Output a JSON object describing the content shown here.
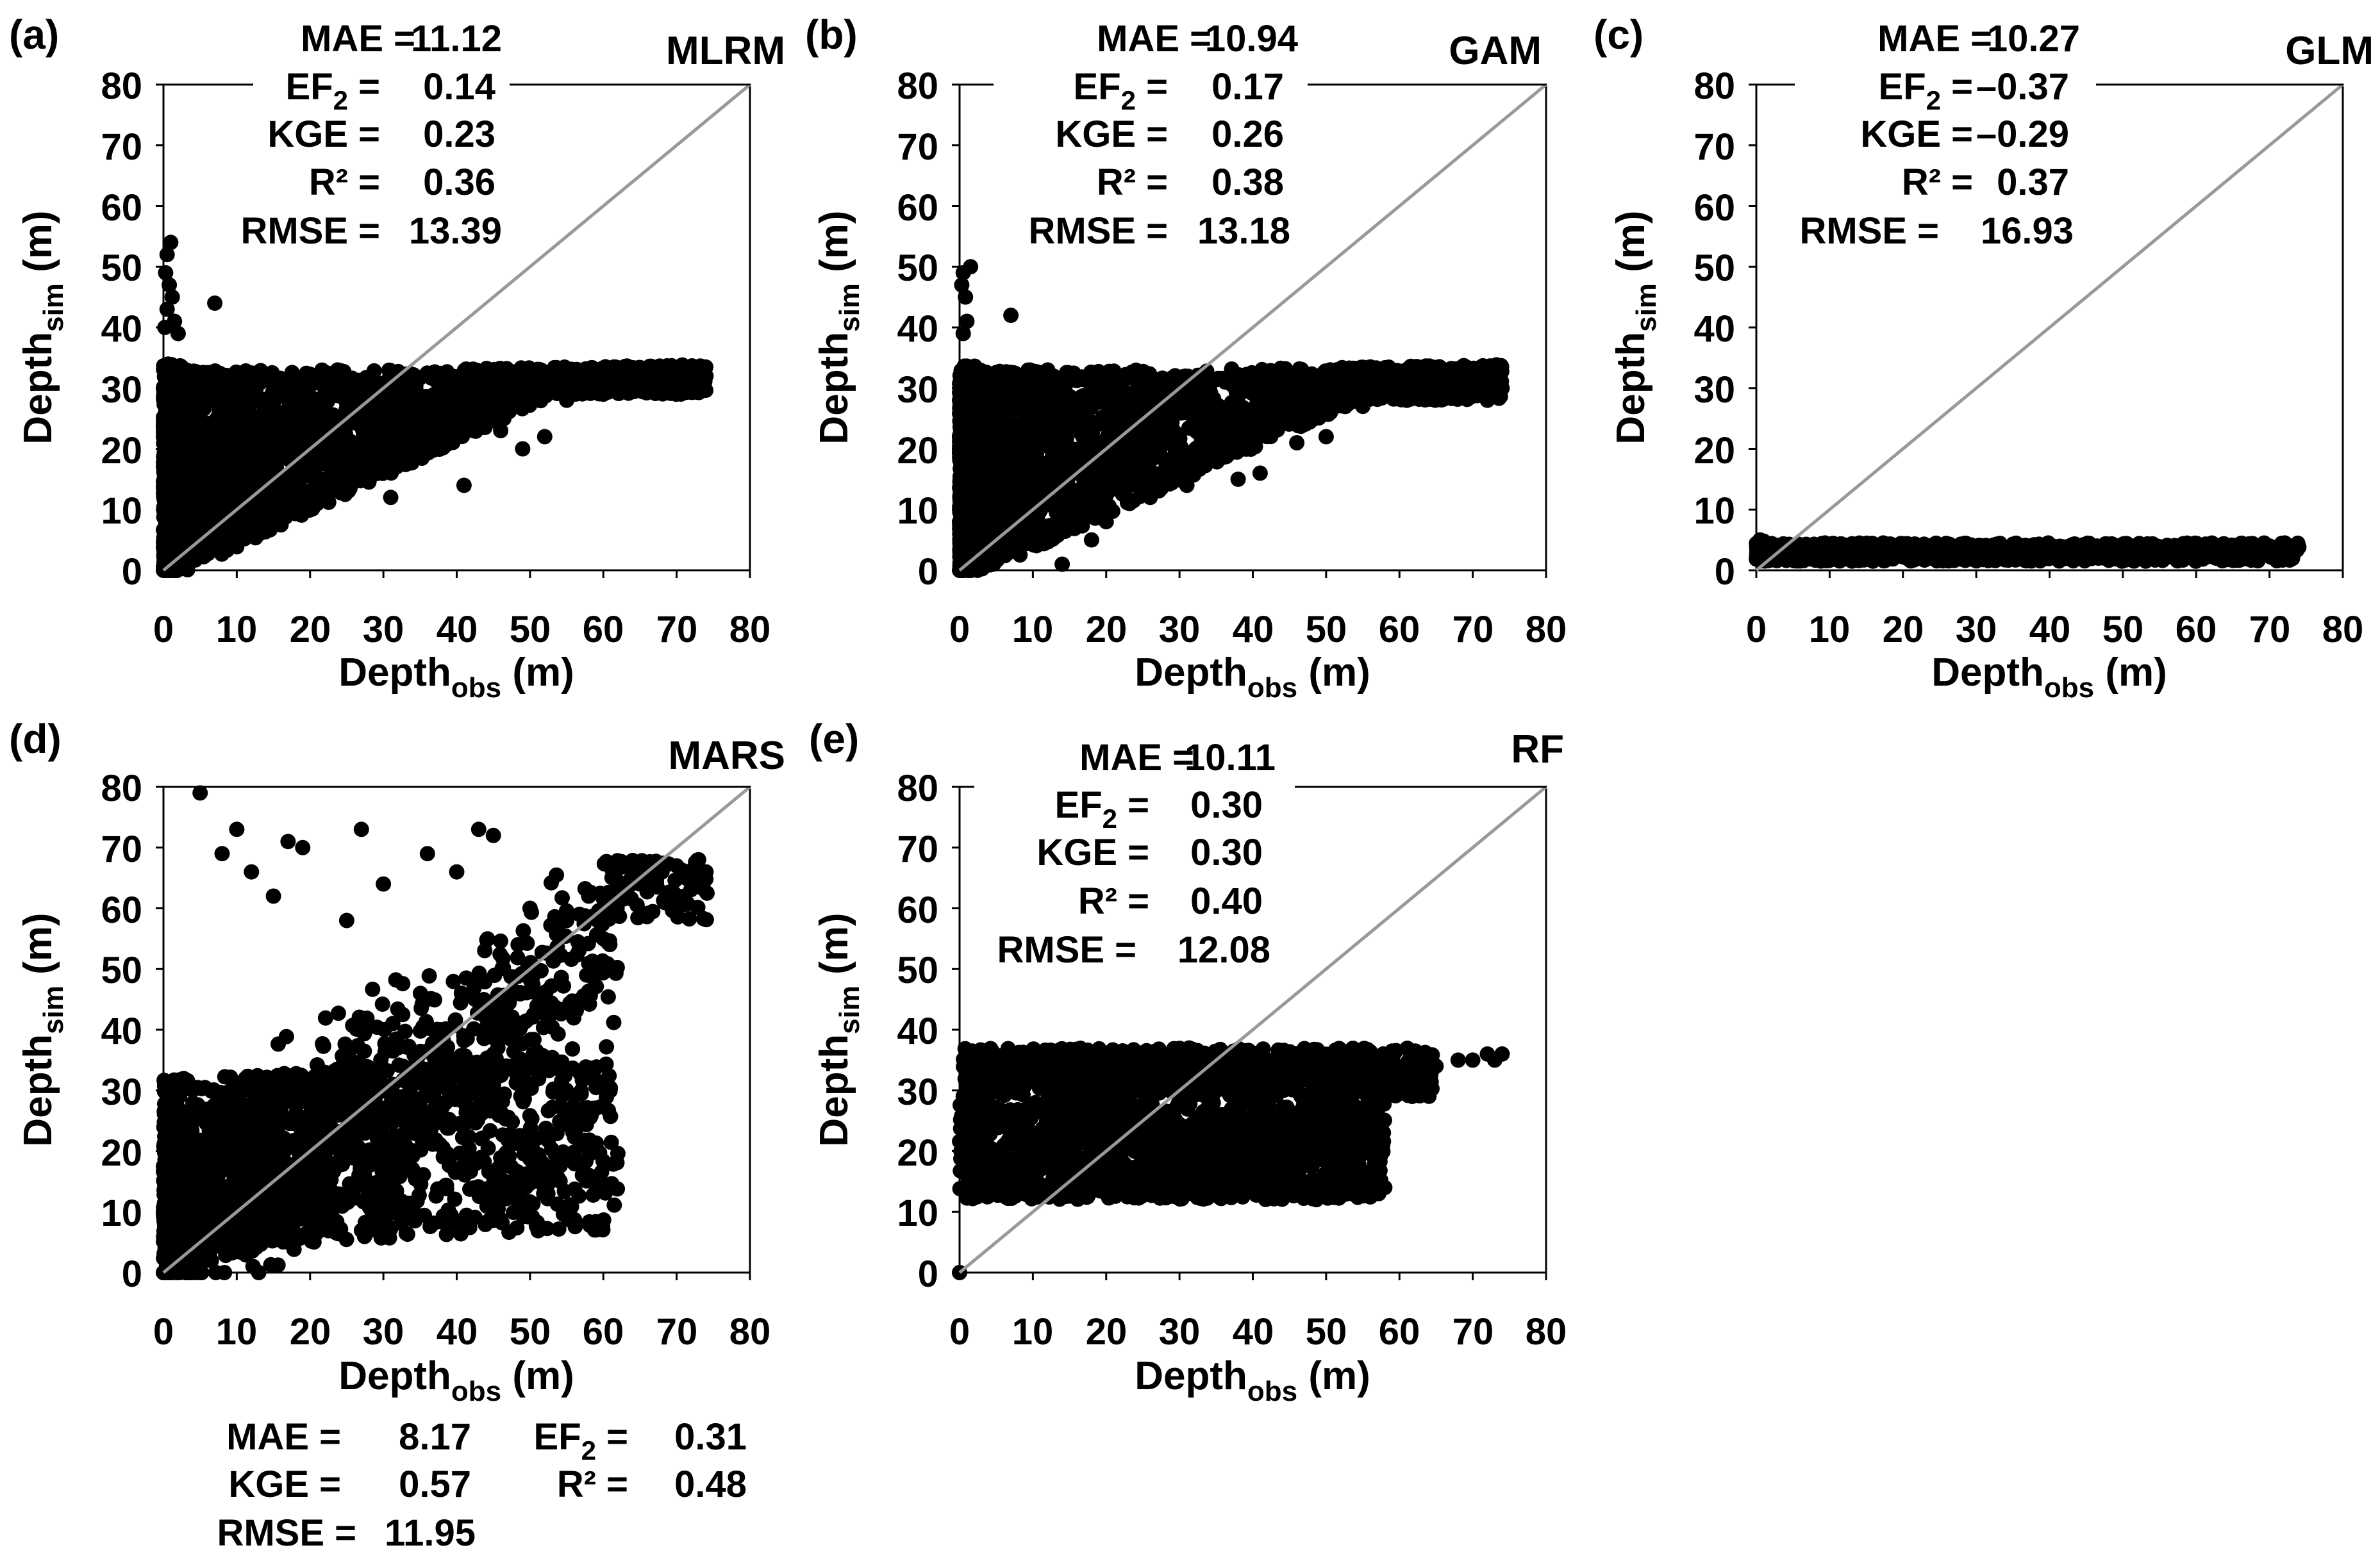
{
  "figure": {
    "panels": [
      "a",
      "b",
      "c",
      "d",
      "e"
    ]
  },
  "chart_data": [
    {
      "id": "a",
      "type": "scatter",
      "panel_label": "(a)",
      "model": "MLRM",
      "xlabel": {
        "main": "Depth",
        "sub": "obs",
        "unit": " (m)"
      },
      "ylabel": {
        "main": "Depth",
        "sub": "sim",
        "unit": " (m)"
      },
      "xlim": [
        0,
        80
      ],
      "ylim": [
        0,
        80
      ],
      "xticks": [
        "0",
        "10",
        "20",
        "30",
        "40",
        "50",
        "60",
        "70",
        "80"
      ],
      "yticks": [
        "0",
        "10",
        "20",
        "30",
        "40",
        "50",
        "60",
        "70",
        "80"
      ],
      "reference_line": "1:1",
      "stats": [
        {
          "label": "MAE =",
          "value": "11.12"
        },
        {
          "label": "EF",
          "sub": "2",
          "tail": " =",
          "value": "0.14"
        },
        {
          "label": "KGE =",
          "value": "0.23"
        },
        {
          "label": "R² =",
          "value": "0.36"
        },
        {
          "label": "RMSE =",
          "value": "13.39"
        }
      ],
      "cloud": {
        "base_lo": 0,
        "base_hi": 33,
        "sat": 32,
        "x_max": 74,
        "slope_lo": 0.58,
        "slope_hi": 1.1
      },
      "outliers": [
        [
          0.5,
          52
        ],
        [
          1,
          54
        ],
        [
          0.3,
          49
        ],
        [
          0.8,
          47
        ],
        [
          1.2,
          45
        ],
        [
          0.5,
          43
        ],
        [
          7,
          44
        ],
        [
          1.5,
          41
        ],
        [
          0.2,
          40
        ],
        [
          2,
          39
        ],
        [
          14,
          12
        ],
        [
          21,
          12
        ],
        [
          25,
          15
        ],
        [
          31,
          12
        ],
        [
          35,
          20
        ],
        [
          41,
          14
        ],
        [
          46,
          23
        ],
        [
          49,
          20
        ],
        [
          52,
          22
        ],
        [
          55,
          28
        ],
        [
          60,
          29
        ],
        [
          66,
          31
        ],
        [
          70,
          32
        ],
        [
          72,
          31
        ],
        [
          74,
          32
        ]
      ]
    },
    {
      "id": "b",
      "type": "scatter",
      "panel_label": "(b)",
      "model": "GAM",
      "xlabel": {
        "main": "Depth",
        "sub": "obs",
        "unit": " (m)"
      },
      "ylabel": {
        "main": "Depth",
        "sub": "sim",
        "unit": " (m)"
      },
      "xlim": [
        0,
        80
      ],
      "ylim": [
        0,
        80
      ],
      "xticks": [
        "0",
        "10",
        "20",
        "30",
        "40",
        "50",
        "60",
        "70",
        "80"
      ],
      "yticks": [
        "0",
        "10",
        "20",
        "30",
        "40",
        "50",
        "60",
        "70",
        "80"
      ],
      "reference_line": "1:1",
      "stats": [
        {
          "label": "MAE =",
          "value": "10.94"
        },
        {
          "label": "EF",
          "sub": "2",
          "tail": " =",
          "value": "0.17"
        },
        {
          "label": "KGE =",
          "value": "0.26"
        },
        {
          "label": "R² =",
          "value": "0.38"
        },
        {
          "label": "RMSE =",
          "value": "13.18"
        }
      ],
      "cloud": {
        "base_lo": 0,
        "base_hi": 33,
        "sat": 31,
        "x_max": 74,
        "slope_lo": 0.55,
        "slope_hi": 1.1
      },
      "outliers": [
        [
          0.5,
          49
        ],
        [
          1.5,
          50
        ],
        [
          0.3,
          47
        ],
        [
          0.8,
          45
        ],
        [
          7,
          42
        ],
        [
          1,
          41
        ],
        [
          0.5,
          39
        ],
        [
          14,
          1
        ],
        [
          18,
          5
        ],
        [
          20,
          8
        ],
        [
          26,
          12
        ],
        [
          31,
          14
        ],
        [
          38,
          15
        ],
        [
          41,
          16
        ],
        [
          46,
          21
        ],
        [
          50,
          22
        ],
        [
          55,
          27
        ],
        [
          61,
          28
        ],
        [
          66,
          30
        ],
        [
          70,
          29
        ],
        [
          72,
          28
        ],
        [
          74,
          30
        ]
      ]
    },
    {
      "id": "c",
      "type": "scatter",
      "panel_label": "(c)",
      "model": "GLM",
      "xlabel": {
        "main": "Depth",
        "sub": "obs",
        "unit": " (m)"
      },
      "ylabel": {
        "main": "Depth",
        "sub": "sim",
        "unit": " (m)"
      },
      "xlim": [
        0,
        80
      ],
      "ylim": [
        0,
        80
      ],
      "xticks": [
        "0",
        "10",
        "20",
        "30",
        "40",
        "50",
        "60",
        "70",
        "80"
      ],
      "yticks": [
        "0",
        "10",
        "20",
        "30",
        "40",
        "50",
        "60",
        "70",
        "80"
      ],
      "reference_line": "1:1",
      "stats": [
        {
          "label": "MAE =",
          "value": "10.27"
        },
        {
          "label": "EF",
          "sub": "2",
          "tail": " =",
          "value": "–0.37"
        },
        {
          "label": "KGE =",
          "value": "–0.29"
        },
        {
          "label": "R² =",
          "value": "0.37"
        },
        {
          "label": "RMSE =",
          "value": "16.93"
        }
      ],
      "flat": {
        "y_lo": 1.5,
        "y_hi": 4.5,
        "x_max": 74
      },
      "outliers": [
        [
          0.5,
          5
        ],
        [
          1,
          4.8
        ],
        [
          74,
          3.8
        ],
        [
          72,
          3.9
        ],
        [
          70,
          4
        ]
      ]
    },
    {
      "id": "d",
      "type": "scatter",
      "panel_label": "(d)",
      "model": "MARS",
      "xlabel": {
        "main": "Depth",
        "sub": "obs",
        "unit": " (m)"
      },
      "ylabel": {
        "main": "Depth",
        "sub": "sim",
        "unit": " (m)"
      },
      "xlim": [
        0,
        80
      ],
      "ylim": [
        0,
        80
      ],
      "xticks": [
        "0",
        "10",
        "20",
        "30",
        "40",
        "50",
        "60",
        "70",
        "80"
      ],
      "yticks": [
        "0",
        "10",
        "20",
        "30",
        "40",
        "50",
        "60",
        "70",
        "80"
      ],
      "reference_line": "1:1",
      "stats_below": [
        {
          "label": "MAE =",
          "value": "8.17"
        },
        {
          "label": "EF",
          "sub": "2",
          "tail": " =",
          "value": "0.31"
        },
        {
          "label": "KGE =",
          "value": "0.57"
        },
        {
          "label": "R² =",
          "value": "0.48"
        },
        {
          "label": "RMSE =",
          "value": "11.95"
        }
      ],
      "outliers": [
        [
          5,
          79
        ],
        [
          10,
          73
        ],
        [
          17,
          71
        ],
        [
          27,
          73
        ],
        [
          43,
          73
        ],
        [
          45,
          72
        ],
        [
          19,
          70
        ],
        [
          8,
          69
        ],
        [
          36,
          69
        ],
        [
          62,
          63
        ],
        [
          68,
          66
        ],
        [
          70,
          67
        ],
        [
          73,
          68
        ],
        [
          74,
          66
        ],
        [
          65,
          64
        ],
        [
          58,
          62
        ],
        [
          55,
          58
        ],
        [
          60,
          55
        ],
        [
          50,
          60
        ],
        [
          40,
          66
        ],
        [
          30,
          64
        ],
        [
          25,
          58
        ],
        [
          15,
          62
        ],
        [
          12,
          66
        ]
      ]
    },
    {
      "id": "e",
      "type": "scatter",
      "panel_label": "(e)",
      "model": "RF",
      "xlabel": {
        "main": "Depth",
        "sub": "obs",
        "unit": " (m)"
      },
      "ylabel": {
        "main": "Depth",
        "sub": "sim",
        "unit": " (m)"
      },
      "xlim": [
        0,
        80
      ],
      "ylim": [
        0,
        80
      ],
      "xticks": [
        "0",
        "10",
        "20",
        "30",
        "40",
        "50",
        "60",
        "70",
        "80"
      ],
      "yticks": [
        "0",
        "10",
        "20",
        "30",
        "40",
        "50",
        "60",
        "70",
        "80"
      ],
      "reference_line": "1:1",
      "stats": [
        {
          "label": "MAE =",
          "value": "10.11"
        },
        {
          "label": "EF",
          "sub": "2",
          "tail": " =",
          "value": "0.30"
        },
        {
          "label": "KGE =",
          "value": "0.30"
        },
        {
          "label": "R² =",
          "value": "0.40"
        },
        {
          "label": "RMSE =",
          "value": "12.08"
        }
      ],
      "outliers": [
        [
          0,
          0
        ],
        [
          0.5,
          29
        ],
        [
          1,
          27
        ],
        [
          0.8,
          24
        ],
        [
          65,
          34
        ],
        [
          68,
          35
        ],
        [
          70,
          35
        ],
        [
          72,
          36
        ],
        [
          74,
          36
        ],
        [
          73,
          35
        ],
        [
          60,
          30
        ],
        [
          58,
          14
        ],
        [
          57,
          21
        ]
      ]
    }
  ]
}
